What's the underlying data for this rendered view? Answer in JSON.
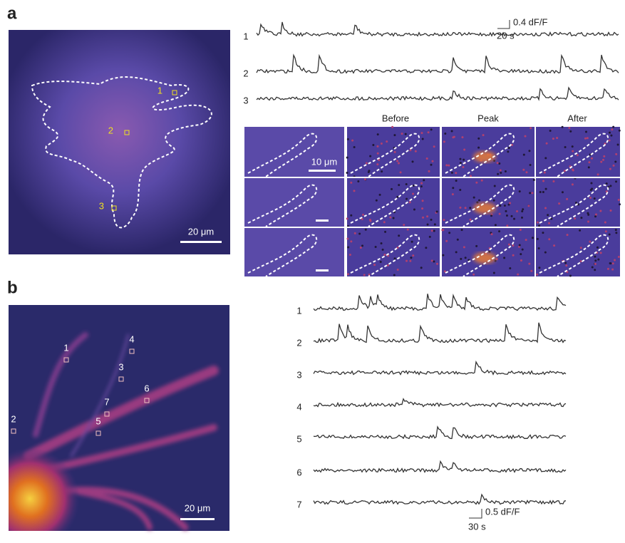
{
  "panel_a": {
    "label": "a",
    "image_scale_bar": "20 μm",
    "roi_labels": [
      "1",
      "2",
      "3"
    ],
    "scale_bar": {
      "y": "0.4 dF/F",
      "x": "20 s"
    },
    "trace_labels": [
      "1",
      "2",
      "3"
    ],
    "columns": [
      "Before",
      "Peak",
      "After"
    ],
    "inset_scale_bar": "10 μm"
  },
  "panel_b": {
    "label": "b",
    "image_scale_bar": "20 μm",
    "roi_labels": [
      "1",
      "2",
      "3",
      "4",
      "5",
      "6",
      "7"
    ],
    "trace_labels": [
      "1",
      "2",
      "3",
      "4",
      "5",
      "6",
      "7"
    ],
    "scale_bar": {
      "y": "0.5 dF/F",
      "x": "30 s"
    }
  }
}
